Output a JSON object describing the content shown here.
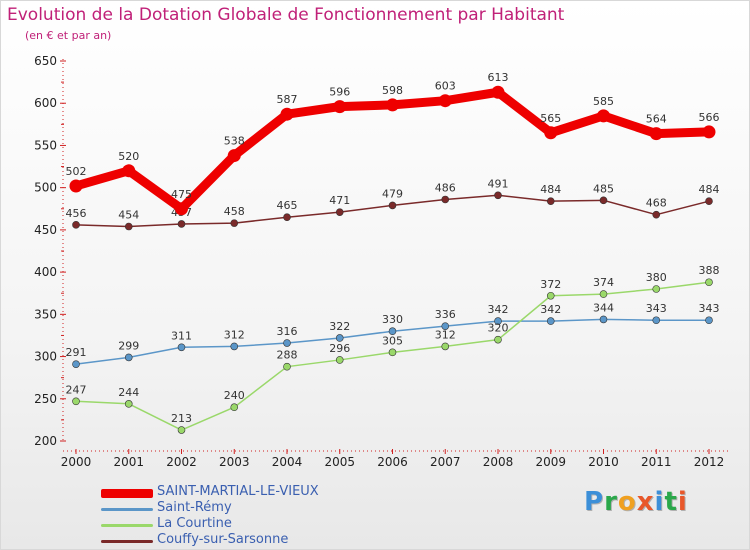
{
  "title": "Evolution de la Dotation Globale de Fonctionnement par Habitant",
  "subtitle": "(en € et par an)",
  "brand": "Proxiti",
  "brand_colors": [
    "#3c8fd8",
    "#2aa84a",
    "#f0a020",
    "#e8572a",
    "#3c8fd8",
    "#2aa84a",
    "#e8572a"
  ],
  "chart_data": {
    "type": "line",
    "title": "Evolution de la Dotation Globale de Fonctionnement par Habitant",
    "ylabel": "(en € et par an)",
    "xlabel": "",
    "ylim": [
      200,
      650
    ],
    "yticks": [
      200,
      250,
      300,
      350,
      400,
      450,
      500,
      550,
      600,
      650
    ],
    "grid": false,
    "legend_position": "bottom",
    "x": [
      "2000",
      "2001",
      "2002",
      "2003",
      "2004",
      "2005",
      "2006",
      "2007",
      "2008",
      "2009",
      "2010",
      "2011",
      "2012"
    ],
    "series": [
      {
        "name": "SAINT-MARTIAL-LE-VIEUX",
        "color": "#ee0000",
        "emphasis": true,
        "values": [
          502,
          520,
          475,
          538,
          587,
          596,
          598,
          603,
          613,
          565,
          585,
          564,
          566
        ]
      },
      {
        "name": "Saint-Rémy",
        "color": "#5b96c8",
        "emphasis": false,
        "values": [
          291,
          299,
          311,
          312,
          316,
          322,
          330,
          336,
          342,
          342,
          344,
          343,
          343
        ]
      },
      {
        "name": "La Courtine",
        "color": "#9ad86a",
        "emphasis": false,
        "values": [
          247,
          244,
          213,
          240,
          288,
          296,
          305,
          312,
          320,
          372,
          374,
          380,
          388
        ]
      },
      {
        "name": "Couffy-sur-Sarsonne",
        "color": "#7a2a2a",
        "emphasis": false,
        "values": [
          456,
          454,
          457,
          458,
          465,
          471,
          479,
          486,
          491,
          484,
          485,
          468,
          484
        ]
      }
    ]
  }
}
